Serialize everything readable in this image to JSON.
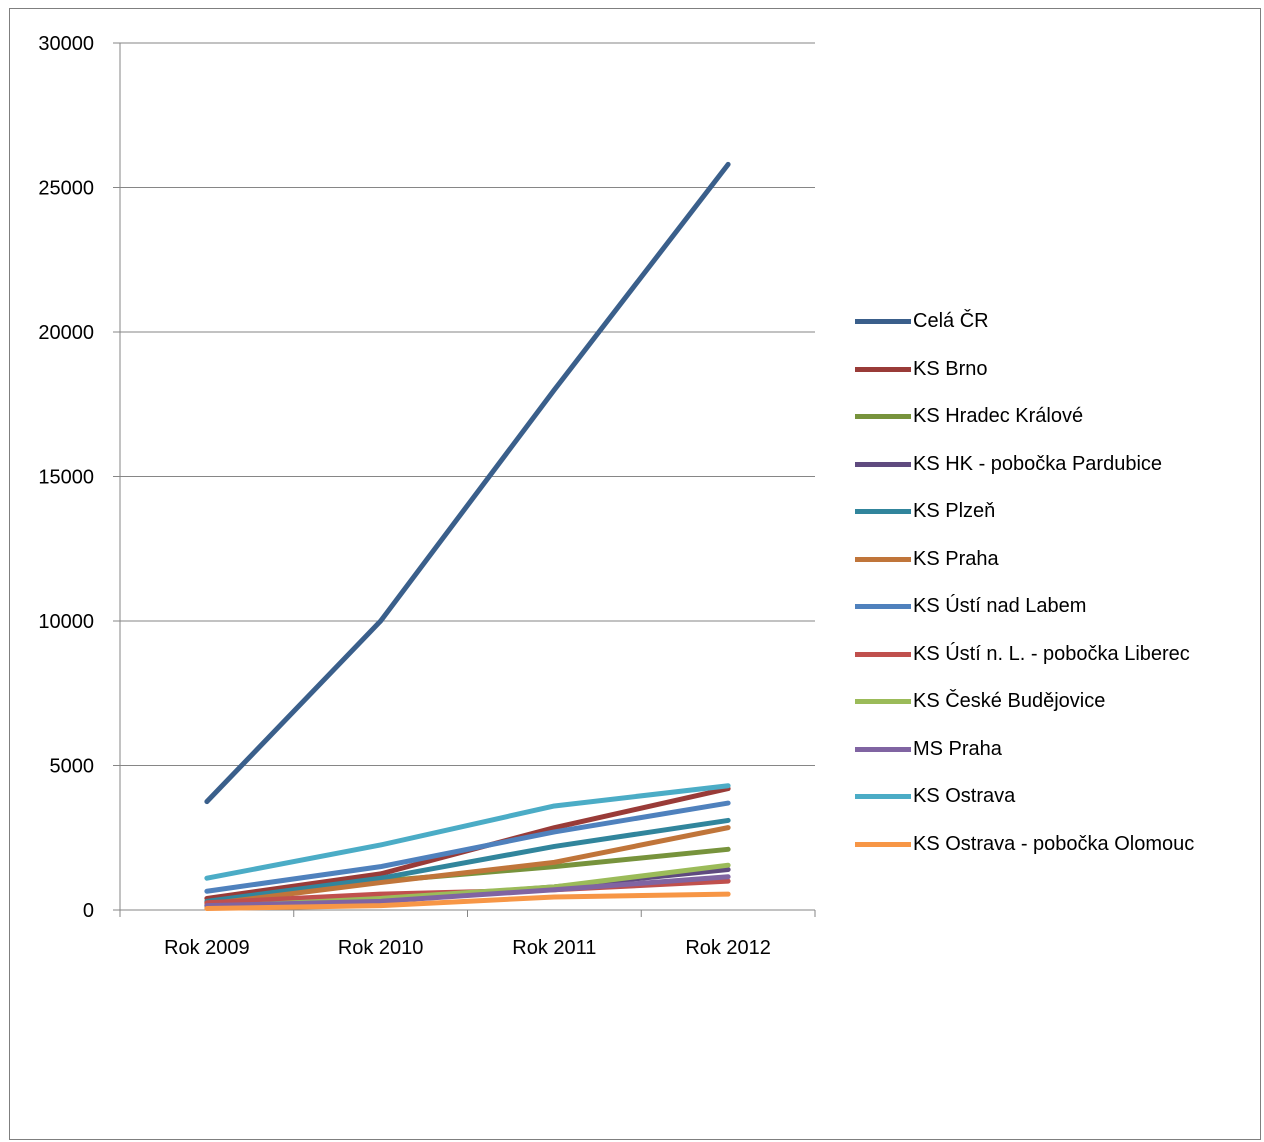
{
  "chart_data": {
    "type": "line",
    "categories": [
      "Rok 2009",
      "Rok 2010",
      "Rok 2011",
      "Rok 2012"
    ],
    "ylim": [
      0,
      30000
    ],
    "yticks": [
      "0",
      "5000",
      "10000",
      "15000",
      "20000",
      "25000",
      "30000"
    ],
    "ytick_values": [
      0,
      5000,
      10000,
      15000,
      20000,
      25000,
      30000
    ],
    "grid": true,
    "legend_position": "right",
    "series": [
      {
        "name": "Celá ČR",
        "color": "#3A5F8B",
        "values": [
          3750,
          10000,
          18000,
          25800
        ]
      },
      {
        "name": "KS Brno",
        "color": "#993B38",
        "values": [
          400,
          1250,
          2850,
          4200
        ]
      },
      {
        "name": "KS Hradec Králové",
        "color": "#77933C",
        "values": [
          250,
          1000,
          1500,
          2100
        ]
      },
      {
        "name": "KS HK - pobočka Pardubice",
        "color": "#5F4A7F",
        "values": [
          150,
          350,
          800,
          1400
        ]
      },
      {
        "name": "KS Plzeň",
        "color": "#31859C",
        "values": [
          300,
          1100,
          2200,
          3100
        ]
      },
      {
        "name": "KS Praha",
        "color": "#C0753A",
        "values": [
          200,
          950,
          1650,
          2850
        ]
      },
      {
        "name": "KS Ústí nad Labem",
        "color": "#4F81BD",
        "values": [
          650,
          1500,
          2700,
          3700
        ]
      },
      {
        "name": "KS Ústí n. L. - pobočka Liberec",
        "color": "#C0504D",
        "values": [
          250,
          550,
          700,
          1000
        ]
      },
      {
        "name": "KS České Budějovice",
        "color": "#9BBB59",
        "values": [
          100,
          400,
          800,
          1550
        ]
      },
      {
        "name": "MS Praha",
        "color": "#8064A2",
        "values": [
          150,
          300,
          700,
          1150
        ]
      },
      {
        "name": "KS Ostrava",
        "color": "#4BACC6",
        "values": [
          1100,
          2250,
          3600,
          4300
        ]
      },
      {
        "name": "KS Ostrava - pobočka Olomouc",
        "color": "#F79646",
        "values": [
          50,
          150,
          450,
          550
        ]
      }
    ]
  }
}
